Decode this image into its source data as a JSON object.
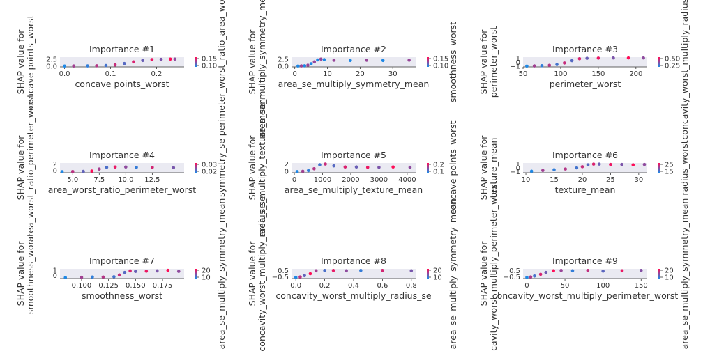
{
  "colors": {
    "low": "#1e88e5",
    "high": "#ff0d57",
    "grid": "#eaeaf2",
    "axis": "#333333"
  },
  "chart_data": [
    {
      "type": "scatter",
      "title": "Importance #1",
      "xlabel": "concave points_worst",
      "ylabel": [
        "SHAP value for",
        "concave points_worst"
      ],
      "clabel": "perimeter_worst_ratio_area_worst",
      "xlim": [
        -0.01,
        0.26
      ],
      "xticks": [
        0.0,
        0.1,
        0.2
      ],
      "ylim": [
        -0.3,
        3.2
      ],
      "yticks": [
        "0.0",
        "2.5"
      ],
      "cticks": [
        "0.15",
        "0.10"
      ],
      "x": [
        0.0,
        0.02,
        0.05,
        0.07,
        0.09,
        0.11,
        0.13,
        0.15,
        0.17,
        0.19,
        0.21,
        0.23,
        0.24
      ],
      "y": [
        0.0,
        0.02,
        0.05,
        0.1,
        0.2,
        0.4,
        0.9,
        1.5,
        2.0,
        2.3,
        2.4,
        2.5,
        2.5
      ]
    },
    {
      "type": "scatter",
      "title": "Importance #2",
      "xlabel": "area_se_multiply_symmetry_mean",
      "ylabel": [
        "SHAP value for",
        "area_se_multiply_symmetry_mean"
      ],
      "clabel": "smoothness_worst",
      "xlim": [
        -1,
        37
      ],
      "xticks": [
        0,
        10,
        20,
        30
      ],
      "ylim": [
        -0.3,
        3.2
      ],
      "yticks": [
        "0.0",
        "2.5"
      ],
      "cticks": [
        "0.15",
        "0.10"
      ],
      "x": [
        1,
        2,
        3,
        4,
        5,
        6,
        7,
        8,
        9,
        12,
        17,
        22,
        27,
        35
      ],
      "y": [
        0.0,
        0.05,
        0.1,
        0.3,
        0.8,
        1.5,
        2.2,
        2.5,
        2.3,
        2.1,
        2.0,
        2.1,
        2.0,
        2.1
      ]
    },
    {
      "type": "scatter",
      "title": "Importance #3",
      "xlabel": "perimeter_worst",
      "ylabel": [
        "SHAP value for",
        "perimeter_worst"
      ],
      "clabel": "concavity_worst_multiply_radius_se",
      "xlim": [
        50,
        215
      ],
      "xticks": [
        50,
        100,
        150,
        200
      ],
      "ylim": [
        -1.2,
        1.3
      ],
      "yticks": [
        "1",
        "0",
        "−1"
      ],
      "cticks": [
        "0.50",
        "0.25"
      ],
      "x": [
        55,
        65,
        75,
        85,
        95,
        105,
        115,
        125,
        135,
        150,
        170,
        190,
        210
      ],
      "y": [
        -1.0,
        -0.95,
        -0.9,
        -0.8,
        -0.6,
        -0.2,
        0.4,
        0.9,
        1.0,
        1.05,
        1.1,
        1.1,
        1.1
      ]
    },
    {
      "type": "scatter",
      "title": "Importance #4",
      "xlabel": "area_worst_ratio_perimeter_worst",
      "ylabel": [
        "SHAP value for",
        "area_worst_ratio_perimeter_worst"
      ],
      "clabel": "symmetry_se",
      "xlim": [
        3.8,
        15.5
      ],
      "xticks": [
        5.0,
        7.5,
        10.0,
        12.5
      ],
      "ylim": [
        -0.6,
        2.3
      ],
      "yticks": [
        "2",
        "0"
      ],
      "cticks": [
        "0.03",
        "0.02"
      ],
      "x": [
        4.0,
        5.0,
        6.0,
        6.8,
        7.5,
        8.2,
        9.0,
        10.0,
        11.0,
        12.5,
        14.5
      ],
      "y": [
        -0.3,
        -0.25,
        -0.2,
        -0.1,
        0.5,
        1.0,
        1.1,
        1.1,
        1.0,
        1.0,
        0.9
      ]
    },
    {
      "type": "scatter",
      "title": "Importance #5",
      "xlabel": "area_se_multiply_texture_mean",
      "ylabel": [
        "SHAP value for",
        "area_se_multiply_texture_mean"
      ],
      "clabel": "concave points_worst",
      "xlim": [
        -100,
        4300
      ],
      "xticks": [
        0,
        1000,
        2000,
        3000,
        4000
      ],
      "ylim": [
        -0.4,
        2.3
      ],
      "yticks": [
        "2",
        "0"
      ],
      "cticks": [
        "0.2",
        "0.1"
      ],
      "x": [
        100,
        300,
        500,
        700,
        900,
        1100,
        1400,
        1800,
        2200,
        2600,
        3000,
        3500,
        4100
      ],
      "y": [
        -0.1,
        0.0,
        0.2,
        0.7,
        1.8,
        2.0,
        1.5,
        1.2,
        1.2,
        1.1,
        1.1,
        1.2,
        1.1
      ]
    },
    {
      "type": "scatter",
      "title": "Importance #6",
      "xlabel": "texture_mean",
      "ylabel": [
        "SHAP value for",
        "texture_mean"
      ],
      "clabel": "radius_worst",
      "xlim": [
        9.5,
        31.5
      ],
      "xticks": [
        10,
        15,
        20,
        25,
        30
      ],
      "ylim": [
        -1.3,
        1.3
      ],
      "yticks": [
        "1",
        "0",
        "−1"
      ],
      "cticks": [
        "25",
        "15"
      ],
      "x": [
        11,
        13,
        15,
        17,
        19,
        20,
        21,
        22,
        23,
        25,
        27,
        29,
        31
      ],
      "y": [
        -0.9,
        -0.7,
        -0.5,
        -0.3,
        0.0,
        0.3,
        0.8,
        1.0,
        1.0,
        0.9,
        0.9,
        0.8,
        0.9
      ]
    },
    {
      "type": "scatter",
      "title": "Importance #7",
      "xlabel": "smoothness_worst",
      "ylabel": [
        "SHAP value for",
        "smoothness_worst"
      ],
      "clabel": "area_se_multiply_symmetry_mean",
      "xlim": [
        0.08,
        0.195
      ],
      "xticks": [
        0.1,
        0.125,
        0.15,
        0.175
      ],
      "ylim": [
        -0.6,
        1.3
      ],
      "yticks": [
        "1",
        "0"
      ],
      "cticks": [
        "20",
        "10"
      ],
      "x": [
        0.085,
        0.1,
        0.11,
        0.12,
        0.13,
        0.135,
        0.14,
        0.145,
        0.15,
        0.16,
        0.17,
        0.18,
        0.19
      ],
      "y": [
        -0.4,
        -0.35,
        -0.3,
        -0.3,
        -0.25,
        0.1,
        0.6,
        0.9,
        0.8,
        0.85,
        0.9,
        1.0,
        0.8
      ]
    },
    {
      "type": "scatter",
      "title": "Importance #8",
      "xlabel": "concavity_worst_multiply_radius_se",
      "ylabel": [
        "SHAP value for",
        "concavity_worst_multiply_radius_se"
      ],
      "clabel": "area_se_multiply_symmetry_mean",
      "xlim": [
        -0.03,
        0.83
      ],
      "xticks": [
        0.0,
        0.2,
        0.4,
        0.6,
        0.8
      ],
      "ylim": [
        -0.75,
        0.75
      ],
      "yticks": [
        "0.5",
        "−0.5"
      ],
      "cticks": [
        "20",
        "10"
      ],
      "x": [
        0.0,
        0.03,
        0.06,
        0.1,
        0.14,
        0.2,
        0.26,
        0.35,
        0.45,
        0.6,
        0.8
      ],
      "y": [
        -0.55,
        -0.5,
        -0.3,
        0.0,
        0.45,
        0.5,
        0.5,
        0.45,
        0.5,
        0.5,
        0.45
      ]
    },
    {
      "type": "scatter",
      "title": "Importance #9",
      "xlabel": "concavity_worst_multiply_perimeter_worst",
      "ylabel": [
        "SHAP value for",
        "concavity_worst_multiply_perimeter_worst"
      ],
      "clabel": "area_se_multiply_symmetry_mean",
      "xlim": [
        -5,
        158
      ],
      "xticks": [
        0,
        50,
        100,
        150
      ],
      "ylim": [
        -0.75,
        0.75
      ],
      "yticks": [
        "0.5",
        "−0.5"
      ],
      "cticks": [
        "20",
        "10"
      ],
      "x": [
        0,
        5,
        10,
        18,
        25,
        35,
        45,
        60,
        80,
        100,
        125,
        150
      ],
      "y": [
        -0.55,
        -0.5,
        -0.35,
        -0.1,
        0.2,
        0.45,
        0.5,
        0.45,
        0.5,
        0.4,
        0.45,
        0.5
      ]
    }
  ]
}
